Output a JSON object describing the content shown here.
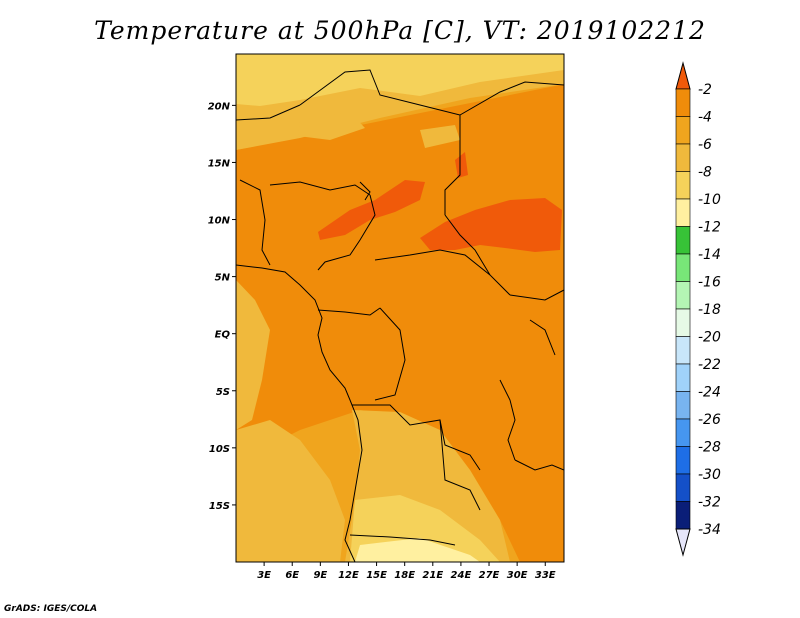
{
  "title": "Temperature at 500hPa [C], VT: 2019102212",
  "credit": "GrADS: IGES/COLA",
  "map": {
    "lon_range": [
      0,
      35
    ],
    "lat_range": [
      -20,
      24.5
    ],
    "lat_ticks": [
      {
        "value": 20,
        "label": "20N"
      },
      {
        "value": 15,
        "label": "15N"
      },
      {
        "value": 10,
        "label": "10N"
      },
      {
        "value": 5,
        "label": "5N"
      },
      {
        "value": 0,
        "label": "EQ"
      },
      {
        "value": -5,
        "label": "5S"
      },
      {
        "value": -10,
        "label": "10S"
      },
      {
        "value": -15,
        "label": "15S"
      }
    ],
    "lon_ticks": [
      {
        "value": 3,
        "label": "3E"
      },
      {
        "value": 6,
        "label": "6E"
      },
      {
        "value": 9,
        "label": "9E"
      },
      {
        "value": 12,
        "label": "12E"
      },
      {
        "value": 15,
        "label": "15E"
      },
      {
        "value": 18,
        "label": "18E"
      },
      {
        "value": 21,
        "label": "21E"
      },
      {
        "value": 24,
        "label": "24E"
      },
      {
        "value": 27,
        "label": "27E"
      },
      {
        "value": 30,
        "label": "30E"
      },
      {
        "value": 33,
        "label": "33E"
      }
    ]
  },
  "colorbar": {
    "labels": [
      "-2",
      "-4",
      "-6",
      "-8",
      "-10",
      "-12",
      "-14",
      "-16",
      "-18",
      "-20",
      "-22",
      "-24",
      "-26",
      "-28",
      "-30",
      "-32",
      "-34"
    ],
    "colors": [
      "#f05a0a",
      "#f08c0a",
      "#f0a51e",
      "#f0b93c",
      "#f5d25a",
      "#fff0a0",
      "#37c337",
      "#78e678",
      "#b4f5b4",
      "#e6fae6",
      "#c8e6fa",
      "#a0d2fa",
      "#78b4f0",
      "#4696f0",
      "#1e6ee6",
      "#1450c8",
      "#0a1e78",
      "#e6e6fa"
    ]
  }
}
